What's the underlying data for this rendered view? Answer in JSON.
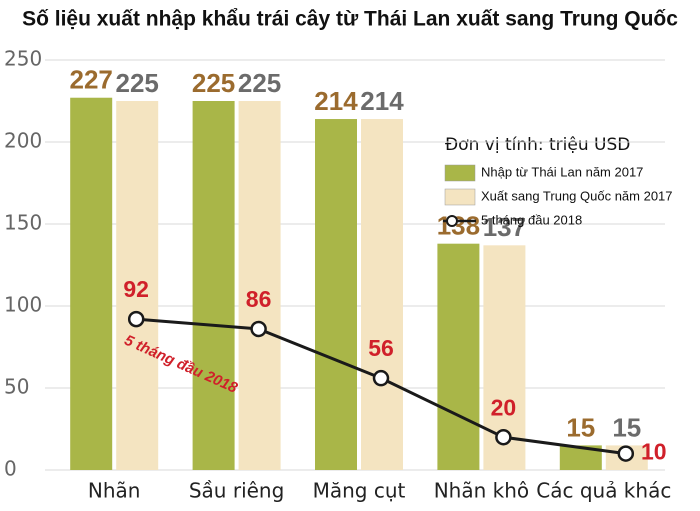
{
  "chart_data": {
    "type": "bar",
    "title": "Số liệu xuất nhập khẩu trái cây từ Thái Lan xuất sang Trung Quốc",
    "unit_note": "Đơn vị tính: triệu USD",
    "categories": [
      "Nhãn",
      "Sầu riêng",
      "Măng cụt",
      "Nhãn khô",
      "Các quả khác"
    ],
    "series": [
      {
        "name": "Nhập từ Thái Lan năm 2017",
        "color": "#a9b648",
        "label_color": "#9b6b2e",
        "values": [
          227,
          225,
          214,
          138,
          15
        ]
      },
      {
        "name": "Xuất sang Trung Quốc năm 2017",
        "color": "#f4e4c1",
        "label_color": "#6b6b6b",
        "values": [
          225,
          225,
          214,
          137,
          15
        ]
      },
      {
        "name": "5 tháng đầu 2018",
        "type": "line",
        "color": "#1a1a1a",
        "label_color": "#d0202a",
        "values": [
          92,
          86,
          56,
          20,
          10
        ]
      }
    ],
    "annotation": "5 tháng đầu 2018",
    "ylim": [
      0,
      250
    ],
    "yticks": [
      0,
      50,
      100,
      150,
      200,
      250
    ],
    "grid": true
  }
}
